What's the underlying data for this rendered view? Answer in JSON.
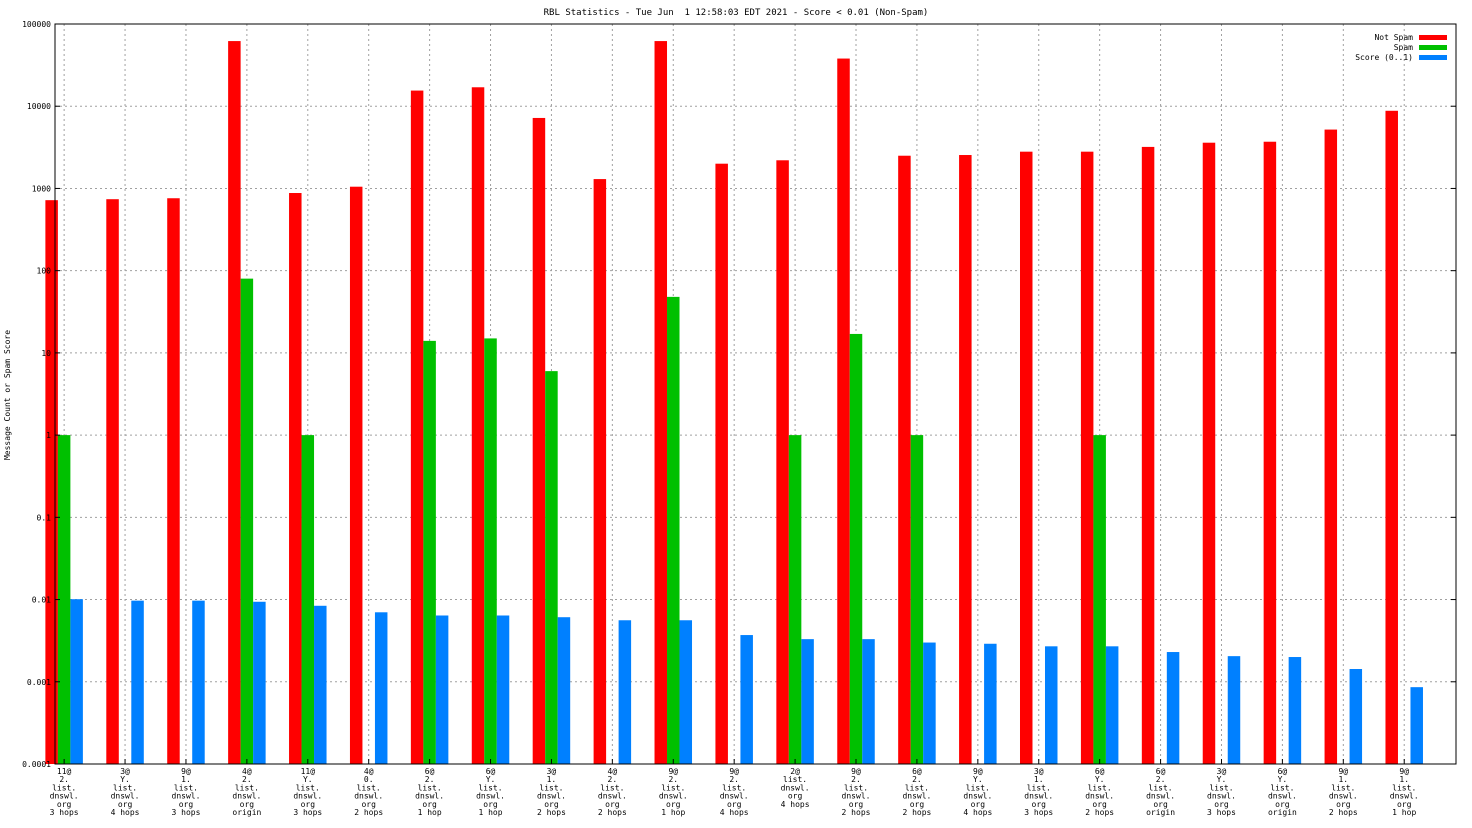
{
  "chart_data": {
    "type": "bar",
    "title": "RBL Statistics - Tue Jun  1 12:58:03 EDT 2021 - Score < 0.01 (Non-Spam)",
    "xlabel": "",
    "ylabel": "Message Count or Spam Score",
    "y_scale": "log",
    "ylim": [
      0.0001,
      100000
    ],
    "y_ticks": [
      "0.0001",
      "0.001",
      "0.01",
      "0.1",
      "1",
      "10",
      "100",
      "1000",
      "10000",
      "100000"
    ],
    "grid": true,
    "legend_position": "top-right",
    "categories": [
      [
        "11@",
        "2.",
        "list.",
        "dnswl.",
        "org",
        "3 hops"
      ],
      [
        "3@",
        "Y.",
        "list.",
        "dnswl.",
        "org",
        "4 hops"
      ],
      [
        "9@",
        "1.",
        "list.",
        "dnswl.",
        "org",
        "3 hops"
      ],
      [
        "4@",
        "2.",
        "list.",
        "dnswl.",
        "org",
        "origin"
      ],
      [
        "11@",
        "Y.",
        "list.",
        "dnswl.",
        "org",
        "3 hops"
      ],
      [
        "4@",
        "0.",
        "list.",
        "dnswl.",
        "org",
        "2 hops"
      ],
      [
        "6@",
        "2.",
        "list.",
        "dnswl.",
        "org",
        "1 hop"
      ],
      [
        "6@",
        "Y.",
        "list.",
        "dnswl.",
        "org",
        "1 hop"
      ],
      [
        "3@",
        "1.",
        "list.",
        "dnswl.",
        "org",
        "2 hops"
      ],
      [
        "4@",
        "2.",
        "list.",
        "dnswl.",
        "org",
        "2 hops"
      ],
      [
        "9@",
        "2.",
        "list.",
        "dnswl.",
        "org",
        "1 hop"
      ],
      [
        "9@",
        "2.",
        "list.",
        "dnswl.",
        "org",
        "4 hops"
      ],
      [
        "2@",
        "list.",
        "dnswl.",
        "org",
        "4 hops"
      ],
      [
        "9@",
        "2.",
        "list.",
        "dnswl.",
        "org",
        "2 hops"
      ],
      [
        "6@",
        "2.",
        "list.",
        "dnswl.",
        "org",
        "2 hops"
      ],
      [
        "9@",
        "Y.",
        "list.",
        "dnswl.",
        "org",
        "4 hops"
      ],
      [
        "3@",
        "1.",
        "list.",
        "dnswl.",
        "org",
        "3 hops"
      ],
      [
        "6@",
        "Y.",
        "list.",
        "dnswl.",
        "org",
        "2 hops"
      ],
      [
        "6@",
        "2.",
        "list.",
        "dnswl.",
        "org",
        "origin"
      ],
      [
        "3@",
        "Y.",
        "list.",
        "dnswl.",
        "org",
        "3 hops"
      ],
      [
        "6@",
        "Y.",
        "list.",
        "dnswl.",
        "org",
        "origin"
      ],
      [
        "9@",
        "1.",
        "list.",
        "dnswl.",
        "org",
        "2 hops"
      ],
      [
        "9@",
        "1.",
        "list.",
        "dnswl.",
        "org",
        "1 hop"
      ]
    ],
    "series": [
      {
        "name": "Not Spam",
        "color": "#ff0000",
        "values": [
          720,
          740,
          760,
          62000,
          880,
          1050,
          15500,
          17000,
          7200,
          1300,
          62000,
          2000,
          2200,
          38000,
          2500,
          2550,
          2800,
          2800,
          3200,
          3600,
          3700,
          5200,
          8800
        ]
      },
      {
        "name": "Spam",
        "color": "#00c000",
        "values": [
          1,
          0,
          0,
          80,
          1,
          0,
          14,
          15,
          6,
          0,
          48,
          0,
          1,
          17,
          1,
          0,
          0,
          1,
          0,
          0,
          0,
          0,
          0
        ]
      },
      {
        "name": "Score (0..1)",
        "color": "#0080ff",
        "values": [
          0.0101,
          0.0097,
          0.0097,
          0.0094,
          0.0084,
          0.007,
          0.0064,
          0.0064,
          0.0061,
          0.0056,
          0.0056,
          0.0037,
          0.0033,
          0.0033,
          0.003,
          0.0029,
          0.0027,
          0.0027,
          0.0023,
          0.00205,
          0.002,
          0.00143,
          0.00086
        ]
      }
    ]
  }
}
